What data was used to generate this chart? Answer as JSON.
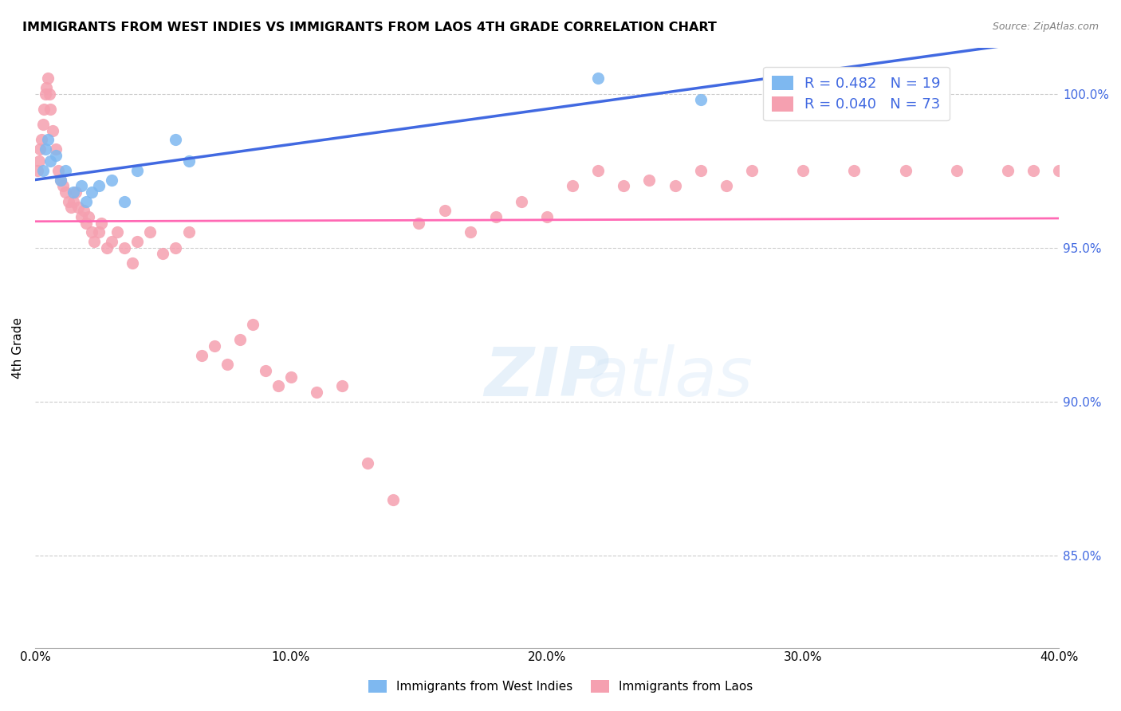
{
  "title": "IMMIGRANTS FROM WEST INDIES VS IMMIGRANTS FROM LAOS 4TH GRADE CORRELATION CHART",
  "source": "Source: ZipAtlas.com",
  "xlabel": "",
  "ylabel": "4th Grade",
  "xlim": [
    0.0,
    40.0
  ],
  "ylim": [
    82.0,
    101.5
  ],
  "xticks": [
    0.0,
    5.0,
    10.0,
    15.0,
    20.0,
    25.0,
    30.0,
    35.0,
    40.0
  ],
  "xticklabels": [
    "0.0%",
    "",
    "10.0%",
    "",
    "20.0%",
    "",
    "30.0%",
    "",
    "40.0%"
  ],
  "yticks": [
    85.0,
    90.0,
    95.0,
    100.0
  ],
  "yticklabels": [
    "85.0%",
    "90.0%",
    "95.0%",
    "100.0%"
  ],
  "legend_r_blue": "0.482",
  "legend_n_blue": "19",
  "legend_r_pink": "0.040",
  "legend_n_pink": "73",
  "blue_color": "#7EB8F0",
  "pink_color": "#F5A0B0",
  "blue_line_color": "#4169E1",
  "pink_line_color": "#FF69B4",
  "watermark": "ZIPatlas",
  "west_indies_x": [
    0.3,
    0.4,
    0.5,
    0.6,
    0.8,
    1.0,
    1.2,
    1.5,
    1.8,
    2.0,
    2.2,
    2.5,
    3.0,
    3.5,
    4.0,
    5.5,
    6.0,
    22.0,
    26.0
  ],
  "west_indies_y": [
    97.5,
    98.2,
    98.5,
    97.8,
    98.0,
    97.2,
    97.5,
    96.8,
    97.0,
    96.5,
    96.8,
    97.0,
    97.2,
    96.5,
    97.5,
    98.5,
    97.8,
    100.5,
    99.8
  ],
  "laos_x": [
    0.1,
    0.15,
    0.2,
    0.25,
    0.3,
    0.35,
    0.4,
    0.45,
    0.5,
    0.55,
    0.6,
    0.7,
    0.8,
    0.9,
    1.0,
    1.1,
    1.2,
    1.3,
    1.4,
    1.5,
    1.6,
    1.7,
    1.8,
    1.9,
    2.0,
    2.1,
    2.2,
    2.3,
    2.5,
    2.6,
    2.8,
    3.0,
    3.2,
    3.5,
    3.8,
    4.0,
    4.5,
    5.0,
    5.5,
    6.0,
    6.5,
    7.0,
    7.5,
    8.0,
    8.5,
    9.0,
    9.5,
    10.0,
    11.0,
    12.0,
    13.0,
    14.0,
    15.0,
    16.0,
    17.0,
    18.0,
    19.0,
    20.0,
    21.0,
    22.0,
    23.0,
    24.0,
    25.0,
    26.0,
    27.0,
    28.0,
    30.0,
    32.0,
    34.0,
    36.0,
    38.0,
    39.0,
    40.0
  ],
  "laos_y": [
    97.5,
    97.8,
    98.2,
    98.5,
    99.0,
    99.5,
    100.0,
    100.2,
    100.5,
    100.0,
    99.5,
    98.8,
    98.2,
    97.5,
    97.2,
    97.0,
    96.8,
    96.5,
    96.3,
    96.5,
    96.8,
    96.3,
    96.0,
    96.2,
    95.8,
    96.0,
    95.5,
    95.2,
    95.5,
    95.8,
    95.0,
    95.2,
    95.5,
    95.0,
    94.5,
    95.2,
    95.5,
    94.8,
    95.0,
    95.5,
    91.5,
    91.8,
    91.2,
    92.0,
    92.5,
    91.0,
    90.5,
    90.8,
    90.3,
    90.5,
    88.0,
    86.8,
    95.8,
    96.2,
    95.5,
    96.0,
    96.5,
    96.0,
    97.0,
    97.5,
    97.0,
    97.2,
    97.0,
    97.5,
    97.0,
    97.5,
    97.5,
    97.5,
    97.5,
    97.5,
    97.5,
    97.5,
    97.5
  ]
}
